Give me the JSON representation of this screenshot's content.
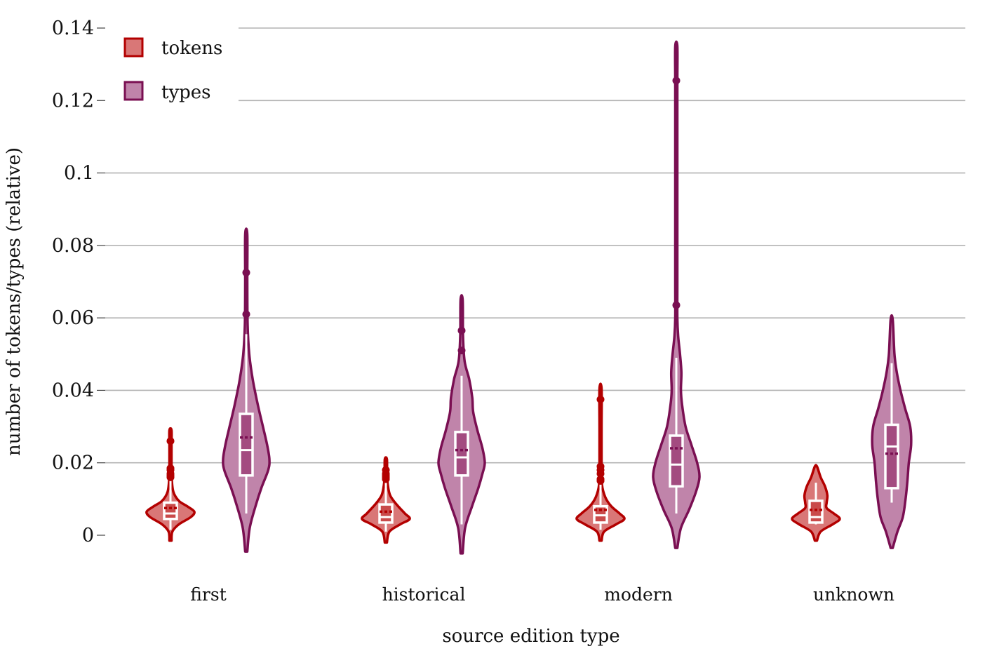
{
  "chart_data": {
    "type": "violin",
    "xlabel": "source edition type",
    "ylabel": "number of tokens/types (relative)",
    "ylim": [
      0,
      0.14
    ],
    "yticks": [
      0,
      0.02,
      0.04,
      0.06,
      0.08,
      0.1,
      0.12,
      0.14
    ],
    "ytick_labels": [
      "0",
      "0.02",
      "0.04",
      "0.06",
      "0.08",
      "0.1",
      "0.12",
      "0.14"
    ],
    "grid": true,
    "legend_position": "top-left",
    "categories": [
      "first",
      "historical",
      "modern",
      "unknown"
    ],
    "series": [
      {
        "name": "tokens",
        "color": "#b30000",
        "fill": "#d97777",
        "box_fill": "#c94a4a",
        "stats": [
          {
            "kde_min": -0.0015,
            "kde_max": 0.029,
            "q1": 0.0045,
            "median": 0.006,
            "q3": 0.009,
            "mean": 0.0075,
            "whisker_low": 0.0015,
            "whisker_high": 0.0155,
            "outliers": [
              0.026,
              0.0185,
              0.018,
              0.017,
              0.0165,
              0.016
            ],
            "density": [
              [
                -0.0015,
                0
              ],
              [
                0.001,
                0.08
              ],
              [
                0.003,
                0.35
              ],
              [
                0.005,
                0.85
              ],
              [
                0.0065,
                1
              ],
              [
                0.008,
                0.7
              ],
              [
                0.0095,
                0.35
              ],
              [
                0.012,
                0.12
              ],
              [
                0.016,
                0.05
              ],
              [
                0.02,
                0.03
              ],
              [
                0.025,
                0.015
              ],
              [
                0.029,
                0
              ]
            ]
          },
          {
            "kde_min": -0.002,
            "kde_max": 0.021,
            "q1": 0.0035,
            "median": 0.005,
            "q3": 0.0085,
            "mean": 0.0065,
            "whisker_low": 0.001,
            "whisker_high": 0.0145,
            "outliers": [
              0.018,
              0.017,
              0.0165,
              0.016,
              0.0155
            ],
            "density": [
              [
                -0.002,
                0
              ],
              [
                0.001,
                0.15
              ],
              [
                0.003,
                0.6
              ],
              [
                0.0045,
                1
              ],
              [
                0.006,
                0.8
              ],
              [
                0.0085,
                0.45
              ],
              [
                0.011,
                0.18
              ],
              [
                0.014,
                0.08
              ],
              [
                0.017,
                0.05
              ],
              [
                0.021,
                0
              ]
            ]
          },
          {
            "kde_min": -0.0015,
            "kde_max": 0.0405,
            "q1": 0.0035,
            "median": 0.0055,
            "q3": 0.008,
            "mean": 0.007,
            "whisker_low": 0.0015,
            "whisker_high": 0.014,
            "outliers": [
              0.0375,
              0.019,
              0.018,
              0.017,
              0.0155,
              0.015
            ],
            "density": [
              [
                -0.0015,
                0
              ],
              [
                0.001,
                0.15
              ],
              [
                0.003,
                0.65
              ],
              [
                0.0045,
                1
              ],
              [
                0.006,
                0.8
              ],
              [
                0.008,
                0.45
              ],
              [
                0.0105,
                0.2
              ],
              [
                0.014,
                0.06
              ],
              [
                0.02,
                0.03
              ],
              [
                0.03,
                0.015
              ],
              [
                0.0405,
                0
              ]
            ]
          },
          {
            "kde_min": -0.0015,
            "kde_max": 0.019,
            "q1": 0.0035,
            "median": 0.005,
            "q3": 0.0095,
            "mean": 0.007,
            "whisker_low": 0.003,
            "whisker_high": 0.0145,
            "outliers": [],
            "density": [
              [
                -0.0015,
                0
              ],
              [
                0.001,
                0.2
              ],
              [
                0.003,
                0.7
              ],
              [
                0.0045,
                1
              ],
              [
                0.006,
                0.75
              ],
              [
                0.0075,
                0.45
              ],
              [
                0.009,
                0.45
              ],
              [
                0.011,
                0.48
              ],
              [
                0.0135,
                0.38
              ],
              [
                0.016,
                0.2
              ],
              [
                0.019,
                0
              ]
            ]
          }
        ]
      },
      {
        "name": "types",
        "color": "#7a0f52",
        "fill": "#c084aa",
        "box_fill": "#a34b80",
        "stats": [
          {
            "kde_min": -0.0045,
            "kde_max": 0.083,
            "q1": 0.0165,
            "median": 0.0235,
            "q3": 0.0335,
            "mean": 0.027,
            "whisker_low": 0.006,
            "whisker_high": 0.0555,
            "outliers": [
              0.0725,
              0.061
            ],
            "density": [
              [
                -0.0045,
                0
              ],
              [
                0.002,
                0.15
              ],
              [
                0.008,
                0.4
              ],
              [
                0.013,
                0.65
              ],
              [
                0.018,
                0.95
              ],
              [
                0.021,
                1
              ],
              [
                0.025,
                0.9
              ],
              [
                0.03,
                0.72
              ],
              [
                0.036,
                0.5
              ],
              [
                0.043,
                0.28
              ],
              [
                0.05,
                0.13
              ],
              [
                0.058,
                0.06
              ],
              [
                0.07,
                0.035
              ],
              [
                0.083,
                0
              ]
            ]
          },
          {
            "kde_min": -0.005,
            "kde_max": 0.065,
            "q1": 0.0165,
            "median": 0.0215,
            "q3": 0.0285,
            "mean": 0.0235,
            "whisker_low": 0.003,
            "whisker_high": 0.044,
            "outliers": [
              0.0565,
              0.051
            ],
            "density": [
              [
                -0.005,
                0
              ],
              [
                0.002,
                0.15
              ],
              [
                0.008,
                0.45
              ],
              [
                0.013,
                0.72
              ],
              [
                0.017,
                0.9
              ],
              [
                0.02,
                1
              ],
              [
                0.024,
                0.9
              ],
              [
                0.029,
                0.68
              ],
              [
                0.034,
                0.5
              ],
              [
                0.038,
                0.46
              ],
              [
                0.043,
                0.33
              ],
              [
                0.048,
                0.13
              ],
              [
                0.055,
                0.06
              ],
              [
                0.065,
                0
              ]
            ]
          },
          {
            "kde_min": -0.0035,
            "kde_max": 0.135,
            "q1": 0.0135,
            "median": 0.0195,
            "q3": 0.0275,
            "mean": 0.024,
            "whisker_low": 0.006,
            "whisker_high": 0.049,
            "outliers": [
              0.1255,
              0.0635
            ],
            "density": [
              [
                -0.0035,
                0
              ],
              [
                0.002,
                0.2
              ],
              [
                0.007,
                0.55
              ],
              [
                0.012,
                0.85
              ],
              [
                0.016,
                1
              ],
              [
                0.02,
                0.9
              ],
              [
                0.025,
                0.65
              ],
              [
                0.03,
                0.4
              ],
              [
                0.036,
                0.25
              ],
              [
                0.04,
                0.2
              ],
              [
                0.045,
                0.22
              ],
              [
                0.05,
                0.16
              ],
              [
                0.055,
                0.08
              ],
              [
                0.06,
                0.04
              ],
              [
                0.07,
                0.025
              ],
              [
                0.09,
                0.02
              ],
              [
                0.11,
                0.018
              ],
              [
                0.125,
                0.012
              ],
              [
                0.135,
                0
              ]
            ]
          },
          {
            "kde_min": -0.0035,
            "kde_max": 0.0595,
            "q1": 0.013,
            "median": 0.0245,
            "q3": 0.0305,
            "mean": 0.0225,
            "whisker_low": 0.009,
            "whisker_high": 0.0475,
            "outliers": [],
            "density": [
              [
                -0.0035,
                0
              ],
              [
                0.001,
                0.25
              ],
              [
                0.005,
                0.48
              ],
              [
                0.01,
                0.6
              ],
              [
                0.015,
                0.68
              ],
              [
                0.02,
                0.74
              ],
              [
                0.025,
                0.84
              ],
              [
                0.03,
                0.8
              ],
              [
                0.035,
                0.58
              ],
              [
                0.04,
                0.38
              ],
              [
                0.045,
                0.22
              ],
              [
                0.05,
                0.12
              ],
              [
                0.0595,
                0
              ]
            ]
          }
        ]
      }
    ]
  }
}
